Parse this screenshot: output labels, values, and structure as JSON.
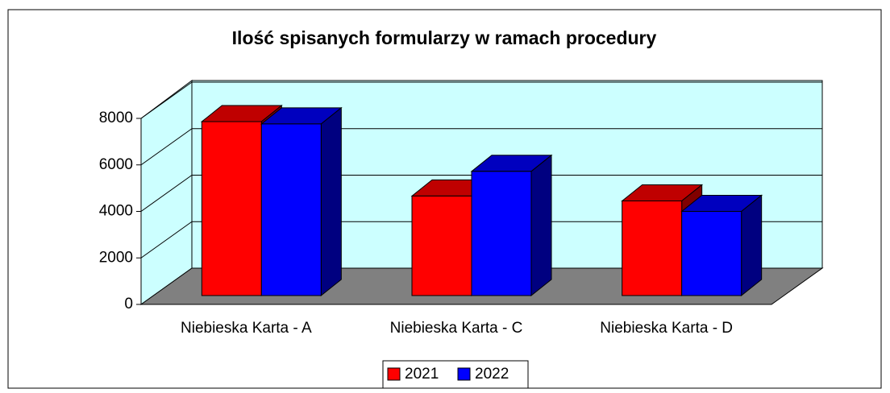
{
  "chart_data": {
    "type": "bar3d",
    "title": "Ilość spisanych formularzy w ramach procedury",
    "categories": [
      "Niebieska Karta - A",
      "Niebieska Karta - C",
      "Niebieska Karta - D"
    ],
    "series": [
      {
        "name": "2021",
        "color": "#ff0000",
        "values": [
          7480,
          4280,
          4070
        ]
      },
      {
        "name": "2022",
        "color": "#0000ff",
        "values": [
          7380,
          5340,
          3620
        ]
      }
    ],
    "ylim": [
      0,
      8000
    ],
    "yticks": [
      0,
      2000,
      4000,
      6000,
      8000
    ],
    "grid": true,
    "legend": "bottom"
  }
}
